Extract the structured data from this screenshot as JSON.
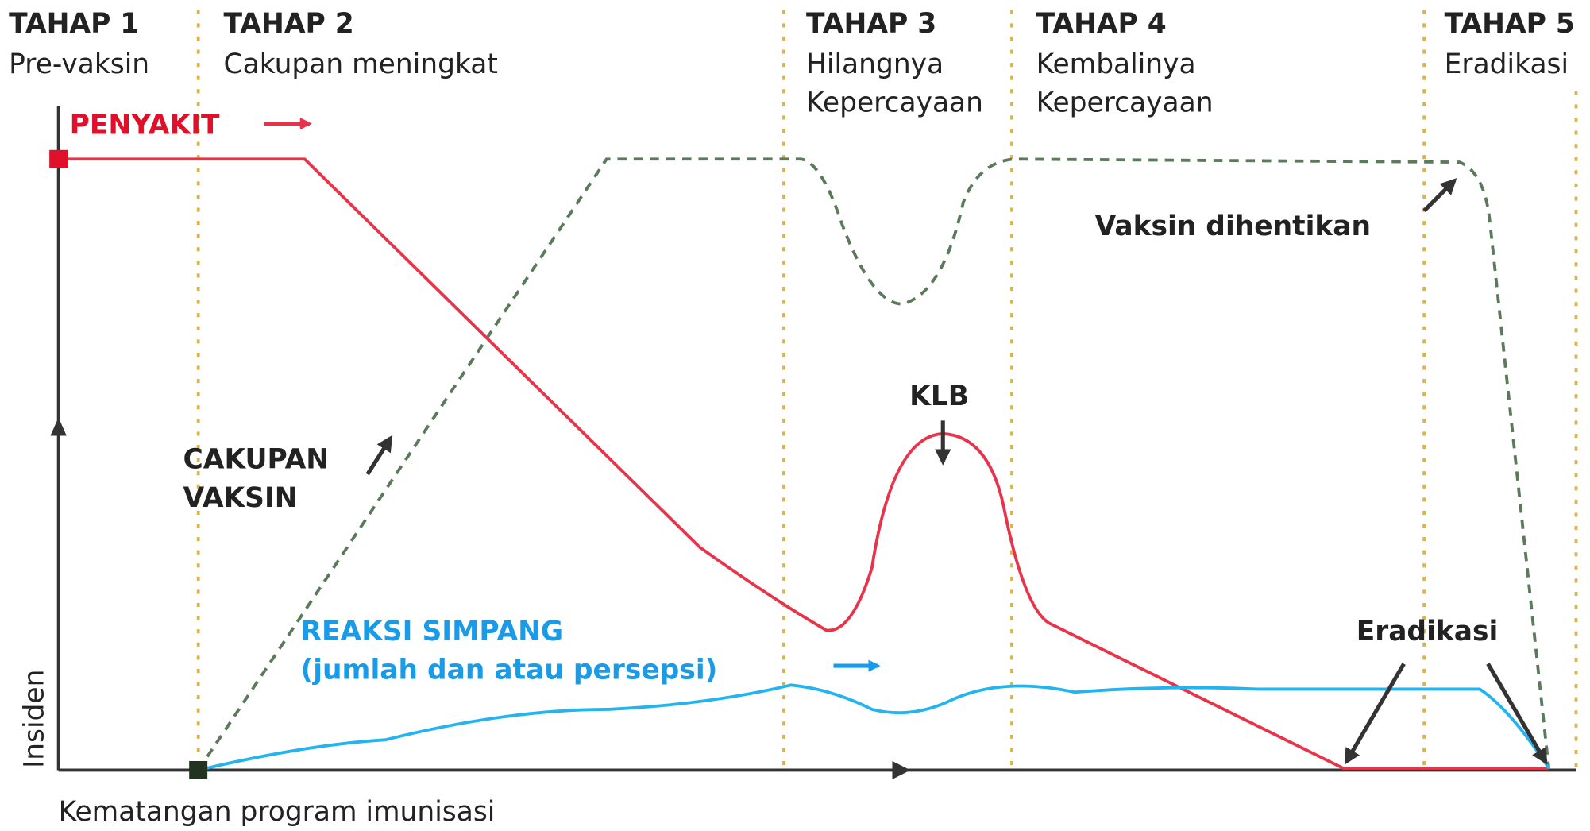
{
  "stages": [
    {
      "title": "TAHAP 1",
      "name": [
        "Pre-vaksin"
      ]
    },
    {
      "title": "TAHAP 2",
      "name": [
        "Cakupan meningkat"
      ]
    },
    {
      "title": "TAHAP 3",
      "name": [
        "Hilangnya",
        "Kepercayaan"
      ]
    },
    {
      "title": "TAHAP 4",
      "name": [
        "Kembalinya",
        "Kepercayaan"
      ]
    },
    {
      "title": "TAHAP 5",
      "name": [
        "Eradikasi"
      ]
    }
  ],
  "labels": {
    "disease": "PENYAKIT",
    "coverage": [
      "CAKUPAN",
      "VAKSIN"
    ],
    "adverse": [
      "REAKSI SIMPANG",
      "(jumlah dan atau persepsi)"
    ],
    "outbreak": "KLB",
    "stopped": "Vaksin dihentikan",
    "eradication": "Eradikasi"
  },
  "axes": {
    "y": "Insiden",
    "x": "Kematangan program imunisasi"
  }
}
